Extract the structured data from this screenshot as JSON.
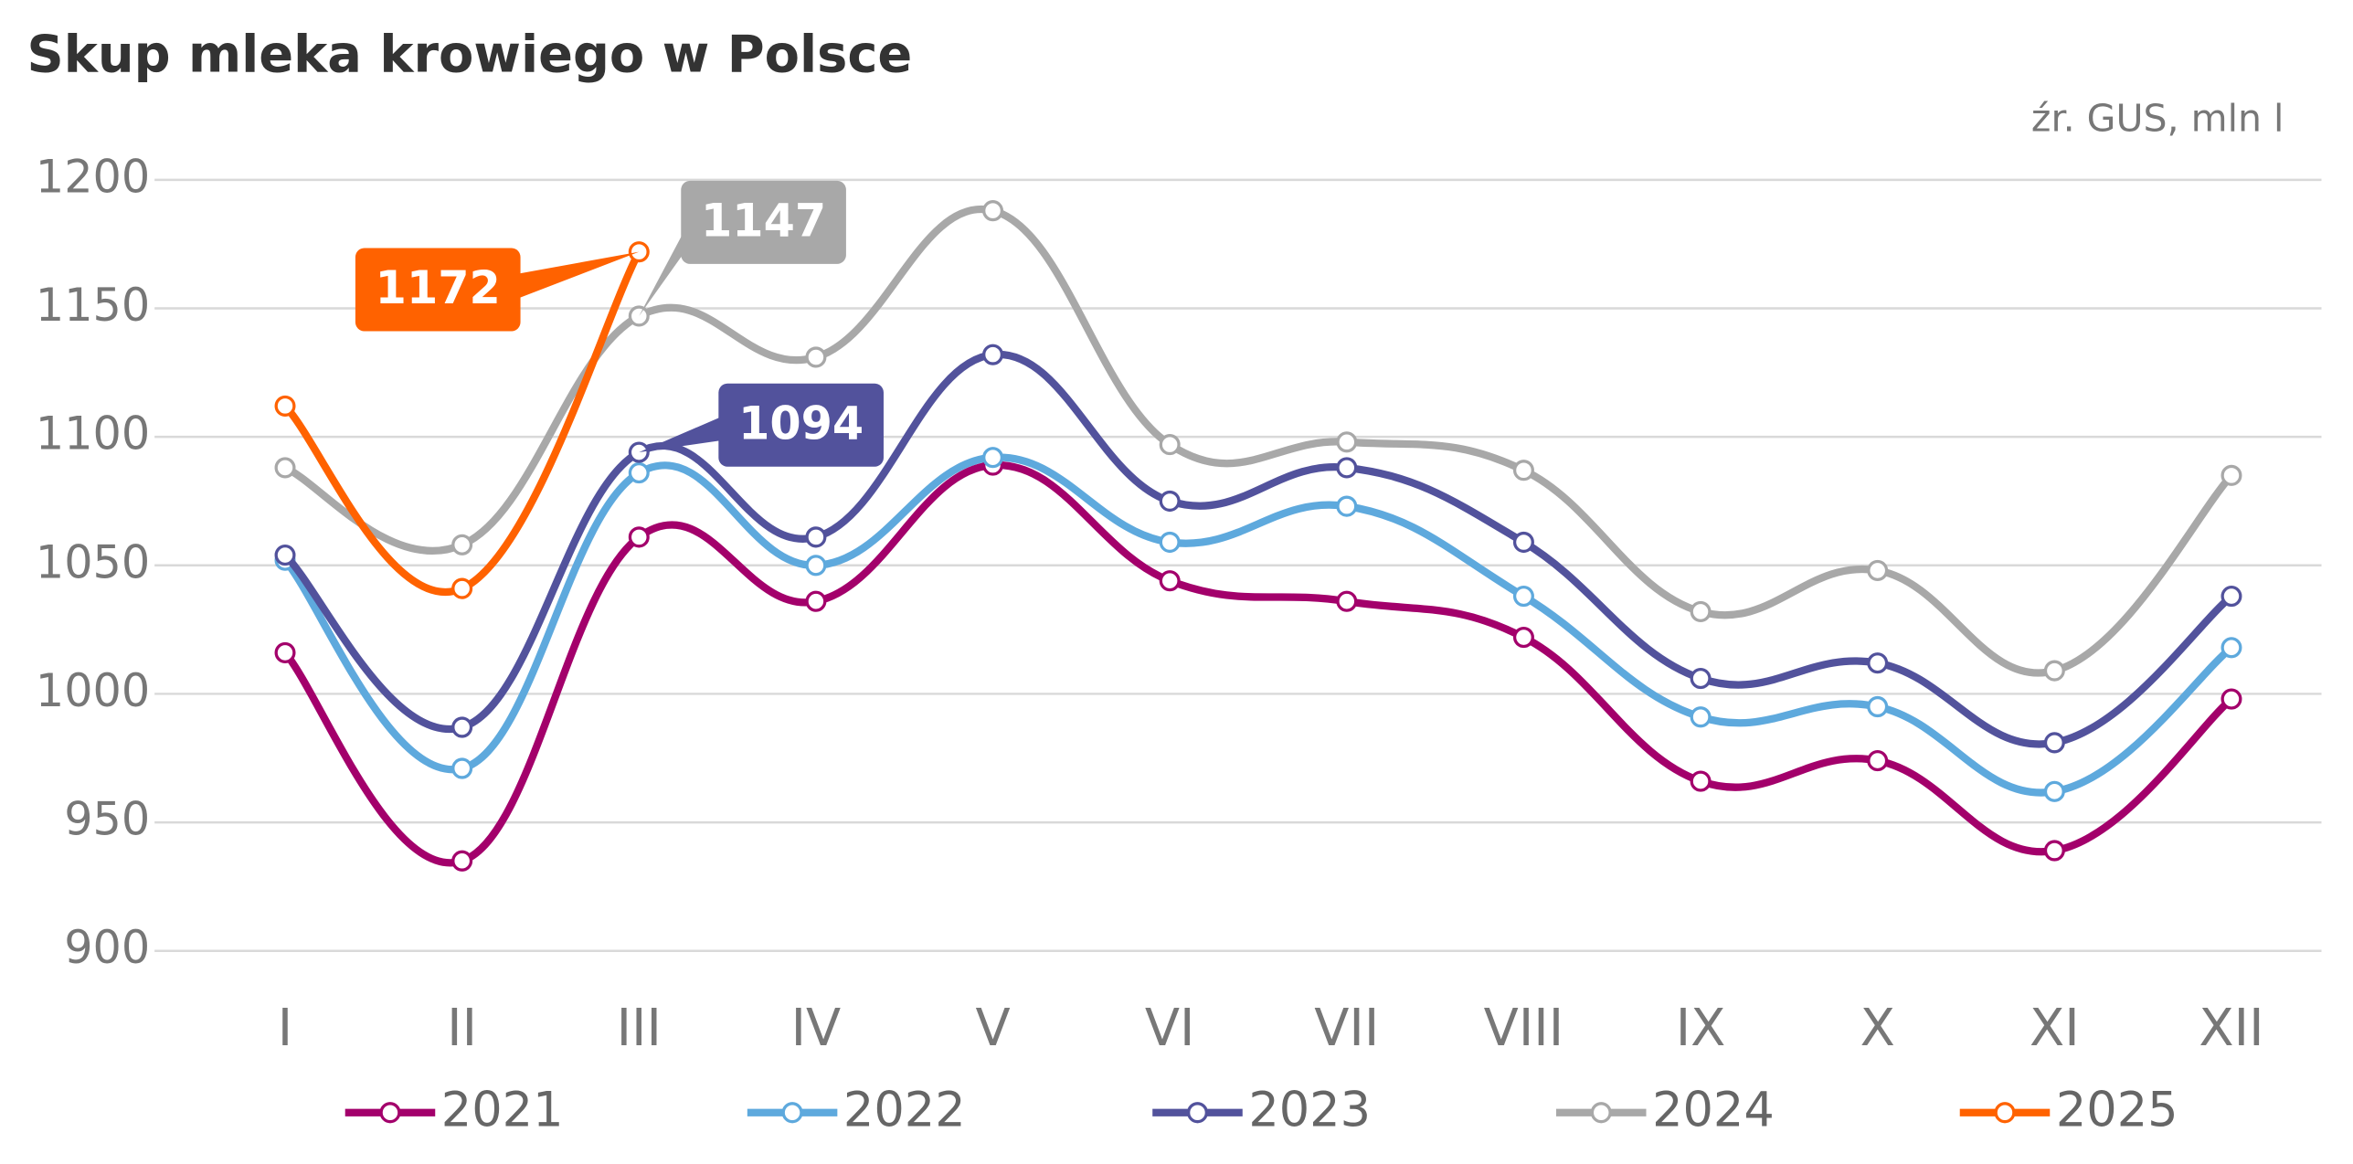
{
  "chart_data": {
    "type": "line",
    "title": "Skup mleka krowiego w Polsce",
    "subtitle": "źr. GUS, mln l",
    "categories": [
      "I",
      "II",
      "III",
      "IV",
      "V",
      "VI",
      "VII",
      "VIII",
      "IX",
      "X",
      "XI",
      "XII"
    ],
    "series": [
      {
        "name": "2021",
        "color": "#a3006b",
        "values": [
          1016,
          935,
          1061,
          1036,
          1089,
          1044,
          1036,
          1022,
          966,
          974,
          939,
          998
        ]
      },
      {
        "name": "2022",
        "color": "#5ea9dd",
        "values": [
          1052,
          971,
          1086,
          1050,
          1092,
          1059,
          1073,
          1038,
          991,
          995,
          962,
          1018
        ]
      },
      {
        "name": "2023",
        "color": "#52529c",
        "values": [
          1054,
          987,
          1094,
          1061,
          1132,
          1075,
          1088,
          1059,
          1006,
          1012,
          981,
          1038
        ],
        "data_labels": true
      },
      {
        "name": "2024",
        "color": "#a8a8a8",
        "values": [
          1088,
          1058,
          1147,
          1131,
          1188,
          1097,
          1098,
          1087,
          1032,
          1048,
          1009,
          1085
        ],
        "data_labels": true
      },
      {
        "name": "2025",
        "color": "#ff6200",
        "values": [
          1112,
          1041,
          1172,
          null,
          null,
          null,
          null,
          null,
          null,
          null,
          null,
          null
        ],
        "data_labels": true
      }
    ],
    "ylim": [
      900,
      1200
    ],
    "yticks": [
      900,
      950,
      1000,
      1050,
      1100,
      1150,
      1200
    ],
    "grid": true,
    "legend": "bottom"
  }
}
